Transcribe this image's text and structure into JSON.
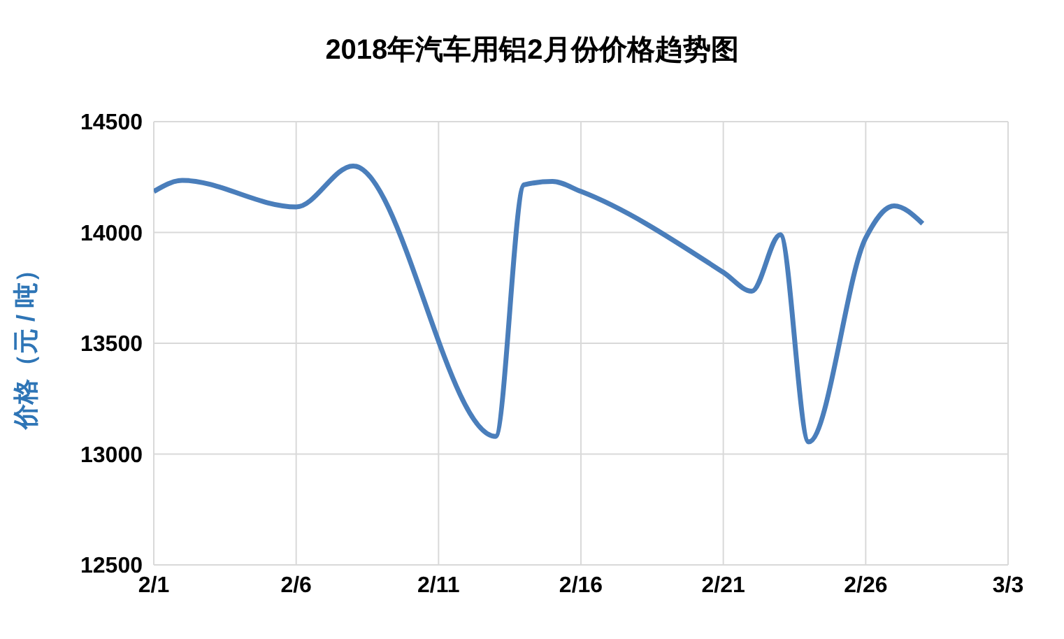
{
  "chart_data": {
    "type": "line",
    "title": "2018年汽车用铝2月份价格趋势图",
    "ylabel": "价格（元 / 吨）",
    "x": [
      "--02-01",
      "--02-02",
      "--02-06",
      "--02-08",
      "--02-13",
      "--02-14",
      "--02-15",
      "--02-16",
      "--02-21",
      "--02-22",
      "--02-23",
      "--02-24",
      "--02-26",
      "--02-27",
      "--02-28"
    ],
    "series": [
      {
        "color": "#4a7ebb",
        "values": [
          14185,
          14235,
          14115,
          14300,
          13080,
          14215,
          14230,
          14185,
          13820,
          13735,
          13990,
          13055,
          13975,
          14120,
          14040
        ]
      }
    ],
    "xlim": [
      "--02-01",
      "--03-03"
    ],
    "xticks": [
      {
        "value": "--02-01",
        "label": "2/1"
      },
      {
        "value": "--02-06",
        "label": "2/6"
      },
      {
        "value": "--02-11",
        "label": "2/11"
      },
      {
        "value": "--02-16",
        "label": "2/16"
      },
      {
        "value": "--02-21",
        "label": "2/21"
      },
      {
        "value": "--02-26",
        "label": "2/26"
      },
      {
        "value": "--03-03",
        "label": "3/3"
      }
    ],
    "ylim": [
      12500,
      14500
    ],
    "yticks": [
      12500,
      13000,
      13500,
      14000,
      14500
    ],
    "grid": true,
    "legend": false,
    "marker": "none",
    "line_style": "solid"
  }
}
